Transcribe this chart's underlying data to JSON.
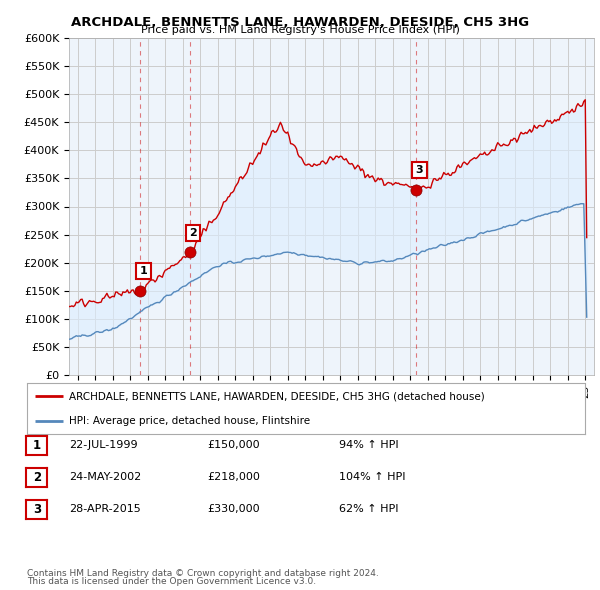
{
  "title": "ARCHDALE, BENNETTS LANE, HAWARDEN, DEESIDE, CH5 3HG",
  "subtitle": "Price paid vs. HM Land Registry's House Price Index (HPI)",
  "ylabel_ticks": [
    "£0",
    "£50K",
    "£100K",
    "£150K",
    "£200K",
    "£250K",
    "£300K",
    "£350K",
    "£400K",
    "£450K",
    "£500K",
    "£550K",
    "£600K"
  ],
  "ytick_values": [
    0,
    50000,
    100000,
    150000,
    200000,
    250000,
    300000,
    350000,
    400000,
    450000,
    500000,
    550000,
    600000
  ],
  "xlim_start": 1995.5,
  "xlim_end": 2025.5,
  "ylim_min": 0,
  "ylim_max": 600000,
  "sale_points": [
    {
      "year": 1999.55,
      "price": 150000,
      "label": "1"
    },
    {
      "year": 2002.39,
      "price": 218000,
      "label": "2"
    },
    {
      "year": 2015.33,
      "price": 330000,
      "label": "3"
    }
  ],
  "legend_house_label": "ARCHDALE, BENNETTS LANE, HAWARDEN, DEESIDE, CH5 3HG (detached house)",
  "legend_hpi_label": "HPI: Average price, detached house, Flintshire",
  "table_rows": [
    {
      "num": "1",
      "date": "22-JUL-1999",
      "price": "£150,000",
      "pct": "94% ↑ HPI"
    },
    {
      "num": "2",
      "date": "24-MAY-2002",
      "price": "£218,000",
      "pct": "104% ↑ HPI"
    },
    {
      "num": "3",
      "date": "28-APR-2015",
      "price": "£330,000",
      "pct": "62% ↑ HPI"
    }
  ],
  "footnote1": "Contains HM Land Registry data © Crown copyright and database right 2024.",
  "footnote2": "This data is licensed under the Open Government Licence v3.0.",
  "house_color": "#cc0000",
  "hpi_color": "#5588bb",
  "fill_color": "#ddeeff",
  "background_color": "#ffffff",
  "chart_bg_color": "#eef4fb",
  "grid_color": "#cccccc",
  "sale_dot_color": "#cc0000",
  "label_box_border": "#cc0000",
  "label_box_fill": "#ffffff",
  "label_text_color": "#000000"
}
